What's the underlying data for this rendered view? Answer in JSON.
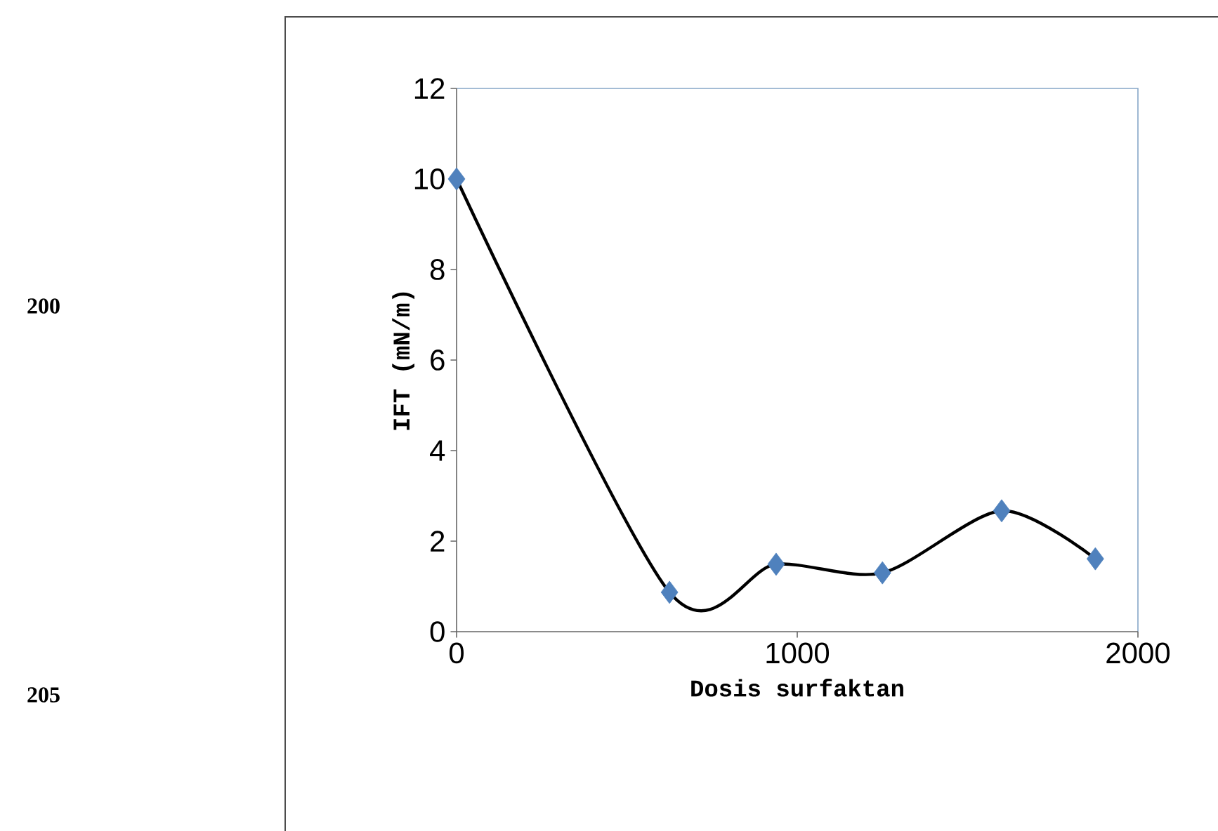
{
  "chart_data": {
    "type": "line",
    "xlabel": "Dosis surfaktan",
    "ylabel": "IFT (mN/m)",
    "x": [
      0,
      625,
      938,
      1250,
      1600,
      1875
    ],
    "series": [
      {
        "color": "#4f81bd",
        "values": [
          10,
          0.87,
          1.49,
          1.3,
          2.67,
          1.61
        ]
      }
    ],
    "xlim": [
      0,
      2000
    ],
    "xticks": [
      0,
      1000,
      2000
    ],
    "ylim": [
      0,
      12
    ],
    "yticks": [
      0,
      2,
      4,
      6,
      8,
      10,
      12
    ],
    "marker": "diamond",
    "line_style": "solid",
    "annotations": [
      "200",
      "205"
    ]
  }
}
